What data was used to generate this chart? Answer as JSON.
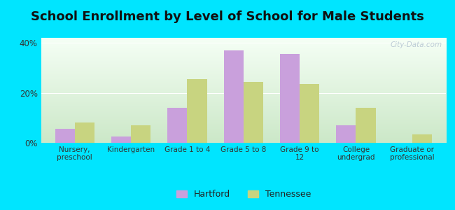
{
  "title": "School Enrollment by Level of School for Male Students",
  "categories": [
    "Nursery,\npreschool",
    "Kindergarten",
    "Grade 1 to 4",
    "Grade 5 to 8",
    "Grade 9 to\n12",
    "College\nundergrad",
    "Graduate or\nprofessional"
  ],
  "hartford": [
    5.5,
    2.5,
    14.0,
    37.0,
    35.5,
    7.0,
    0.0
  ],
  "tennessee": [
    8.0,
    7.0,
    25.5,
    24.5,
    23.5,
    14.0,
    3.5
  ],
  "hartford_color": "#c9a0dc",
  "tennessee_color": "#c8d480",
  "background_color": "#00e5ff",
  "ylim": [
    0,
    42
  ],
  "yticks": [
    0,
    20,
    40
  ],
  "ytick_labels": [
    "0%",
    "20%",
    "40%"
  ],
  "legend_labels": [
    "Hartford",
    "Tennessee"
  ],
  "bar_width": 0.35,
  "title_fontsize": 13,
  "watermark_text": "City-Data.com"
}
